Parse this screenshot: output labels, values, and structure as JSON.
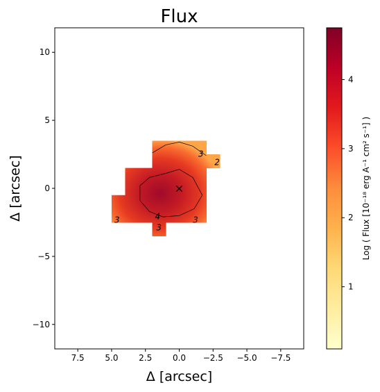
{
  "chart_data": {
    "type": "heatmap",
    "title": "Flux",
    "xlabel": "Δ  [arcsec]",
    "ylabel": "Δ  [arcsec]",
    "xlim": [
      9.2,
      -9.2
    ],
    "ylim": [
      -11.8,
      11.8
    ],
    "x_ticks": [
      7.5,
      5.0,
      2.5,
      0.0,
      -2.5,
      -5.0,
      -7.5
    ],
    "x_tick_labels": [
      "7.5",
      "5.0",
      "2.5",
      "0.0",
      "−2.5",
      "−5.0",
      "−7.5"
    ],
    "y_ticks": [
      10,
      5,
      0,
      -5,
      -10
    ],
    "y_tick_labels": [
      "10",
      "5",
      "0",
      "−5",
      "−10"
    ],
    "colormap": "YlOrRd",
    "colorbar": {
      "label": "Log ( Flux [10⁻¹⁸ erg A⁻¹ cm² s⁻¹] )",
      "range": [
        0.1,
        4.75
      ],
      "ticks": [
        1,
        2,
        3,
        4
      ],
      "tick_labels": [
        "1",
        "2",
        "3",
        "4"
      ]
    },
    "peak": {
      "x": 1.0,
      "y": -0.6,
      "value": 4.6
    },
    "coverage_cells": [
      {
        "x0": 2.0,
        "x1": -2.0,
        "y0": 1.5,
        "y1": 3.5
      },
      {
        "x0": -2.0,
        "x1": -3.0,
        "y0": 1.5,
        "y1": 2.5
      },
      {
        "x0": 4.0,
        "x1": -2.0,
        "y0": -0.5,
        "y1": 1.5
      },
      {
        "x0": 5.0,
        "x1": -2.0,
        "y0": -2.5,
        "y1": -0.5
      },
      {
        "x0": 2.0,
        "x1": 1.0,
        "y0": -3.5,
        "y1": -2.5
      }
    ],
    "contours": [
      {
        "level": 3,
        "points": [
          [
            2.0,
            2.6
          ],
          [
            1.0,
            3.2
          ],
          [
            0.0,
            3.4
          ],
          [
            -1.0,
            3.1
          ],
          [
            -2.0,
            2.4
          ]
        ]
      },
      {
        "level": 4,
        "points": [
          [
            1.0,
            1.1
          ],
          [
            0.0,
            1.4
          ],
          [
            -1.0,
            0.8
          ],
          [
            -1.7,
            -0.5
          ],
          [
            -1.1,
            -1.5
          ],
          [
            0.0,
            -2.0
          ],
          [
            1.2,
            -2.1
          ],
          [
            2.2,
            -1.7
          ],
          [
            2.9,
            -0.9
          ],
          [
            2.9,
            0.2
          ],
          [
            2.2,
            0.8
          ],
          [
            1.0,
            1.1
          ]
        ]
      }
    ],
    "contour_labels": [
      {
        "text": "3",
        "x": -1.6,
        "y": 2.5
      },
      {
        "text": "2",
        "x": -2.8,
        "y": 1.9
      },
      {
        "text": "3",
        "x": 4.6,
        "y": -2.35
      },
      {
        "text": "3",
        "x": 1.5,
        "y": -2.9
      },
      {
        "text": "3",
        "x": -1.2,
        "y": -2.35
      },
      {
        "text": "4",
        "x": 1.6,
        "y": -2.1
      }
    ],
    "marker": {
      "symbol": "×",
      "x": 0.0,
      "y": 0.0
    }
  }
}
